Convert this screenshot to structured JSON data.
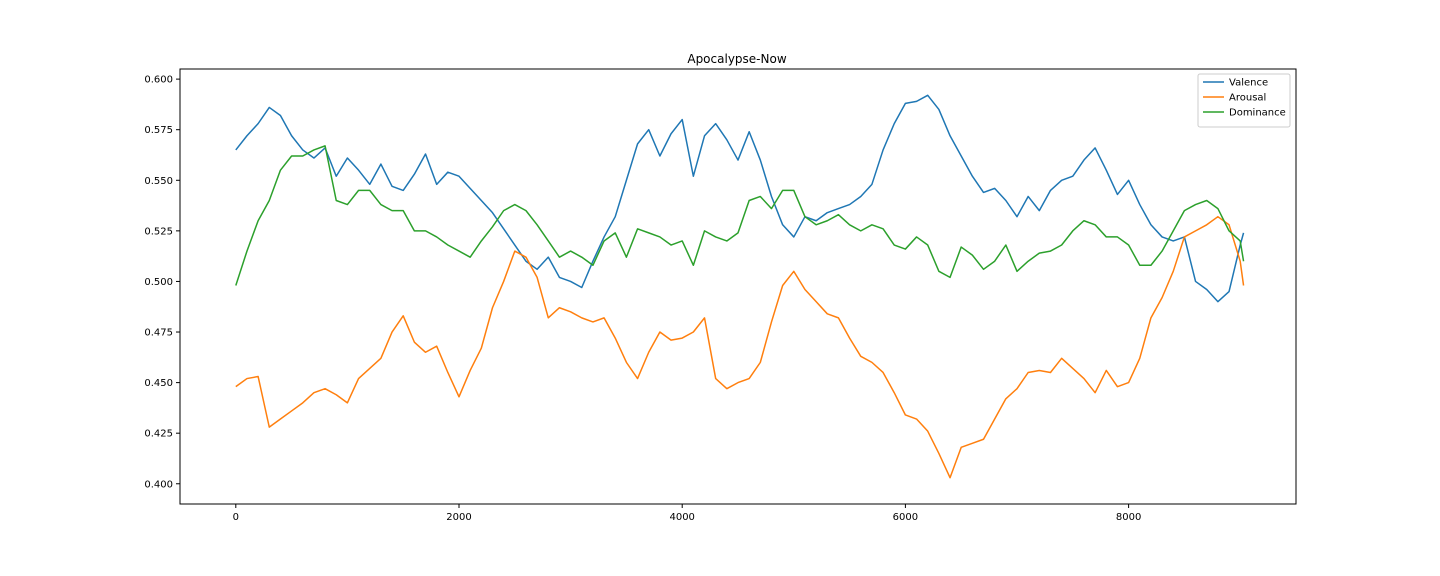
{
  "chart_data": {
    "type": "line",
    "title": "Apocalypse-Now",
    "xlabel": "",
    "ylabel": "",
    "xlim": [
      -500,
      9500
    ],
    "ylim": [
      0.39,
      0.605
    ],
    "xticks": [
      0,
      2000,
      4000,
      6000,
      8000
    ],
    "xtick_labels": [
      "0",
      "2000",
      "4000",
      "6000",
      "8000"
    ],
    "yticks": [
      0.4,
      0.425,
      0.45,
      0.475,
      0.5,
      0.525,
      0.55,
      0.575,
      0.6
    ],
    "ytick_labels": [
      "0.400",
      "0.425",
      "0.450",
      "0.475",
      "0.500",
      "0.525",
      "0.550",
      "0.575",
      "0.600"
    ],
    "grid": false,
    "legend_position": "top-right",
    "series": [
      {
        "name": "Valence",
        "color": "#1f77b4",
        "x": [
          0,
          100,
          200,
          300,
          400,
          500,
          600,
          700,
          800,
          900,
          1000,
          1100,
          1200,
          1300,
          1400,
          1500,
          1600,
          1700,
          1800,
          1900,
          2000,
          2100,
          2200,
          2300,
          2400,
          2500,
          2600,
          2700,
          2800,
          2900,
          3000,
          3100,
          3200,
          3300,
          3400,
          3500,
          3600,
          3700,
          3800,
          3900,
          4000,
          4100,
          4200,
          4300,
          4400,
          4500,
          4600,
          4700,
          4800,
          4900,
          5000,
          5100,
          5200,
          5300,
          5400,
          5500,
          5600,
          5700,
          5800,
          5900,
          6000,
          6100,
          6200,
          6300,
          6400,
          6500,
          6600,
          6700,
          6800,
          6900,
          7000,
          7100,
          7200,
          7300,
          7400,
          7500,
          7600,
          7700,
          7800,
          7900,
          8000,
          8100,
          8200,
          8300,
          8400,
          8500,
          8600,
          8700,
          8800,
          8900,
          9000,
          9030
        ],
        "values": [
          0.565,
          0.572,
          0.578,
          0.586,
          0.582,
          0.572,
          0.565,
          0.561,
          0.566,
          0.552,
          0.561,
          0.555,
          0.548,
          0.558,
          0.547,
          0.545,
          0.553,
          0.563,
          0.548,
          0.554,
          0.552,
          0.546,
          0.54,
          0.534,
          0.526,
          0.518,
          0.51,
          0.506,
          0.512,
          0.502,
          0.5,
          0.497,
          0.51,
          0.522,
          0.532,
          0.55,
          0.568,
          0.575,
          0.562,
          0.573,
          0.58,
          0.552,
          0.572,
          0.578,
          0.57,
          0.56,
          0.574,
          0.56,
          0.542,
          0.528,
          0.522,
          0.532,
          0.53,
          0.534,
          0.536,
          0.538,
          0.542,
          0.548,
          0.565,
          0.578,
          0.588,
          0.589,
          0.592,
          0.585,
          0.572,
          0.562,
          0.552,
          0.544,
          0.546,
          0.54,
          0.532,
          0.542,
          0.535,
          0.545,
          0.55,
          0.552,
          0.56,
          0.566,
          0.555,
          0.543,
          0.55,
          0.538,
          0.528,
          0.522,
          0.52,
          0.522,
          0.5,
          0.496,
          0.49,
          0.495,
          0.518,
          0.524
        ]
      },
      {
        "name": "Arousal",
        "color": "#ff7f0e",
        "x": [
          0,
          100,
          200,
          300,
          400,
          500,
          600,
          700,
          800,
          900,
          1000,
          1100,
          1200,
          1300,
          1400,
          1500,
          1600,
          1700,
          1800,
          1900,
          2000,
          2100,
          2200,
          2300,
          2400,
          2500,
          2600,
          2700,
          2800,
          2900,
          3000,
          3100,
          3200,
          3300,
          3400,
          3500,
          3600,
          3700,
          3800,
          3900,
          4000,
          4100,
          4200,
          4300,
          4400,
          4500,
          4600,
          4700,
          4800,
          4900,
          5000,
          5100,
          5200,
          5300,
          5400,
          5500,
          5600,
          5700,
          5800,
          5900,
          6000,
          6100,
          6200,
          6300,
          6400,
          6500,
          6600,
          6700,
          6800,
          6900,
          7000,
          7100,
          7200,
          7300,
          7400,
          7500,
          7600,
          7700,
          7800,
          7900,
          8000,
          8100,
          8200,
          8300,
          8400,
          8500,
          8600,
          8700,
          8800,
          8900,
          9000,
          9030
        ],
        "values": [
          0.448,
          0.452,
          0.453,
          0.428,
          0.432,
          0.436,
          0.44,
          0.445,
          0.447,
          0.444,
          0.44,
          0.452,
          0.457,
          0.462,
          0.475,
          0.483,
          0.47,
          0.465,
          0.468,
          0.455,
          0.443,
          0.456,
          0.467,
          0.487,
          0.5,
          0.515,
          0.512,
          0.502,
          0.482,
          0.487,
          0.485,
          0.482,
          0.48,
          0.482,
          0.472,
          0.46,
          0.452,
          0.465,
          0.475,
          0.471,
          0.472,
          0.475,
          0.482,
          0.452,
          0.447,
          0.45,
          0.452,
          0.46,
          0.48,
          0.498,
          0.505,
          0.496,
          0.49,
          0.484,
          0.482,
          0.472,
          0.463,
          0.46,
          0.455,
          0.445,
          0.434,
          0.432,
          0.426,
          0.415,
          0.403,
          0.418,
          0.42,
          0.422,
          0.432,
          0.442,
          0.447,
          0.455,
          0.456,
          0.455,
          0.462,
          0.457,
          0.452,
          0.445,
          0.456,
          0.448,
          0.45,
          0.462,
          0.482,
          0.492,
          0.505,
          0.522,
          0.525,
          0.528,
          0.532,
          0.528,
          0.51,
          0.498
        ]
      },
      {
        "name": "Dominance",
        "color": "#2ca02c",
        "x": [
          0,
          100,
          200,
          300,
          400,
          500,
          600,
          700,
          800,
          900,
          1000,
          1100,
          1200,
          1300,
          1400,
          1500,
          1600,
          1700,
          1800,
          1900,
          2000,
          2100,
          2200,
          2300,
          2400,
          2500,
          2600,
          2700,
          2800,
          2900,
          3000,
          3100,
          3200,
          3300,
          3400,
          3500,
          3600,
          3700,
          3800,
          3900,
          4000,
          4100,
          4200,
          4300,
          4400,
          4500,
          4600,
          4700,
          4800,
          4900,
          5000,
          5100,
          5200,
          5300,
          5400,
          5500,
          5600,
          5700,
          5800,
          5900,
          6000,
          6100,
          6200,
          6300,
          6400,
          6500,
          6600,
          6700,
          6800,
          6900,
          7000,
          7100,
          7200,
          7300,
          7400,
          7500,
          7600,
          7700,
          7800,
          7900,
          8000,
          8100,
          8200,
          8300,
          8400,
          8500,
          8600,
          8700,
          8800,
          8900,
          9000,
          9030
        ],
        "values": [
          0.498,
          0.515,
          0.53,
          0.54,
          0.555,
          0.562,
          0.562,
          0.565,
          0.567,
          0.54,
          0.538,
          0.545,
          0.545,
          0.538,
          0.535,
          0.535,
          0.525,
          0.525,
          0.522,
          0.518,
          0.515,
          0.512,
          0.52,
          0.527,
          0.535,
          0.538,
          0.535,
          0.528,
          0.52,
          0.512,
          0.515,
          0.512,
          0.508,
          0.52,
          0.524,
          0.512,
          0.526,
          0.524,
          0.522,
          0.518,
          0.52,
          0.508,
          0.525,
          0.522,
          0.52,
          0.524,
          0.54,
          0.542,
          0.536,
          0.545,
          0.545,
          0.532,
          0.528,
          0.53,
          0.533,
          0.528,
          0.525,
          0.528,
          0.526,
          0.518,
          0.516,
          0.522,
          0.518,
          0.505,
          0.502,
          0.517,
          0.513,
          0.506,
          0.51,
          0.518,
          0.505,
          0.51,
          0.514,
          0.515,
          0.518,
          0.525,
          0.53,
          0.528,
          0.522,
          0.522,
          0.518,
          0.508,
          0.508,
          0.515,
          0.525,
          0.535,
          0.538,
          0.54,
          0.536,
          0.525,
          0.52,
          0.51
        ]
      }
    ]
  }
}
